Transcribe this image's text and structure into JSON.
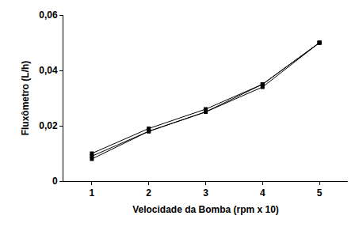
{
  "chart_data": {
    "type": "line",
    "x_label": "Velocidade da Bomba (rpm x 10)",
    "y_label": "Fluxômetro (L/h)",
    "x": [
      1,
      2,
      3,
      4,
      5
    ],
    "series": [
      {
        "color": "#000000",
        "marker": "square",
        "values": [
          0.01,
          0.019,
          0.026,
          0.035,
          0.05
        ]
      },
      {
        "color": "#000000",
        "marker": "square",
        "values": [
          0.009,
          0.018,
          0.025,
          0.034,
          0.05
        ]
      },
      {
        "color": "#000000",
        "marker": "square",
        "values": [
          0.008,
          0.018,
          0.025,
          0.035,
          0.05
        ]
      }
    ],
    "xlim": [
      0.5,
      5.5
    ],
    "xticks": [
      1,
      2,
      3,
      4,
      5
    ],
    "ylim": [
      0,
      0.06
    ],
    "yticks": [
      0,
      {
        "value": 0.02,
        "label": "0,02"
      },
      {
        "value": 0.04,
        "label": "0,04"
      },
      {
        "value": 0.06,
        "label": "0,06"
      }
    ],
    "grid": false
  }
}
